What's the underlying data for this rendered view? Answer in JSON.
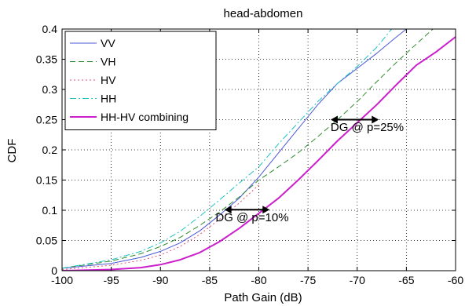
{
  "chart_data": {
    "type": "line",
    "title": "head-abdomen",
    "xlabel": "Path Gain (dB)",
    "ylabel": "CDF",
    "xlim": [
      -100,
      -60
    ],
    "ylim": [
      0,
      0.4
    ],
    "xticks": [
      -100,
      -95,
      -90,
      -85,
      -80,
      -75,
      -70,
      -65,
      -60
    ],
    "yticks": [
      0,
      0.05,
      0.1,
      0.15,
      0.2,
      0.25,
      0.3,
      0.35,
      0.4
    ],
    "xtick_labels": [
      "-100",
      "-95",
      "-90",
      "-85",
      "-80",
      "-75",
      "-70",
      "-65",
      "-60"
    ],
    "ytick_labels": [
      "0",
      "0.05",
      "0.1",
      "0.15",
      "0.2",
      "0.25",
      "0.3",
      "0.35",
      "0.4"
    ],
    "grid": true,
    "legend_position": "top-left",
    "series": [
      {
        "name": "VV",
        "color": "#4b57d6",
        "dash": "solid",
        "width": 1,
        "x": [
          -100,
          -95,
          -92,
          -90,
          -88,
          -86,
          -84,
          -82,
          -80,
          -78,
          -76,
          -74,
          -72,
          -70,
          -68,
          -66,
          -65
        ],
        "y": [
          0.004,
          0.012,
          0.022,
          0.032,
          0.046,
          0.066,
          0.092,
          0.12,
          0.155,
          0.195,
          0.235,
          0.275,
          0.31,
          0.335,
          0.36,
          0.387,
          0.4
        ]
      },
      {
        "name": "VH",
        "color": "#2e8b2e",
        "dash": "7,4",
        "width": 1,
        "x": [
          -100,
          -95,
          -92,
          -90,
          -88,
          -86,
          -84,
          -82,
          -80,
          -78,
          -76,
          -74,
          -72,
          -70,
          -68,
          -66,
          -64,
          -62.3
        ],
        "y": [
          0.004,
          0.016,
          0.028,
          0.04,
          0.055,
          0.075,
          0.097,
          0.122,
          0.15,
          0.172,
          0.195,
          0.222,
          0.25,
          0.28,
          0.313,
          0.345,
          0.375,
          0.4
        ]
      },
      {
        "name": "HV",
        "color": "#e64c7a",
        "dash": "2,3",
        "width": 1,
        "x": [
          -100,
          -95,
          -92,
          -90,
          -88,
          -86,
          -84,
          -82,
          -80
        ],
        "y": [
          0.002,
          0.009,
          0.017,
          0.026,
          0.04,
          0.06,
          0.085,
          0.112,
          0.142
        ]
      },
      {
        "name": "HH",
        "color": "#1fc2c2",
        "dash": "8,3,2,3",
        "width": 1,
        "x": [
          -100,
          -95,
          -92,
          -90,
          -88,
          -86,
          -84,
          -82,
          -80,
          -78,
          -76,
          -74,
          -72,
          -70,
          -68,
          -66.5
        ],
        "y": [
          0.004,
          0.018,
          0.032,
          0.046,
          0.065,
          0.09,
          0.117,
          0.145,
          0.172,
          0.21,
          0.245,
          0.28,
          0.31,
          0.338,
          0.37,
          0.4
        ]
      },
      {
        "name": "HH-HV combining",
        "color": "#cc1fcc",
        "dash": "solid",
        "width": 2,
        "x": [
          -100,
          -95,
          -92,
          -90,
          -88,
          -86,
          -84,
          -82,
          -80,
          -78,
          -76,
          -74,
          -72,
          -70,
          -68,
          -66,
          -64,
          -62,
          -60
        ],
        "y": [
          0.0,
          0.002,
          0.005,
          0.01,
          0.018,
          0.03,
          0.048,
          0.07,
          0.095,
          0.12,
          0.15,
          0.182,
          0.215,
          0.245,
          0.275,
          0.308,
          0.34,
          0.362,
          0.387
        ]
      }
    ],
    "annotations": [
      {
        "text": "DG @ p=10%",
        "text_x": -84.4,
        "text_y": 0.082,
        "arrow_x": [
          -83.5,
          -78.9
        ],
        "arrow_y": 0.101
      },
      {
        "text": "DG @ p=25%",
        "text_x": -72.7,
        "text_y": 0.231,
        "arrow_x": [
          -72.7,
          -67.8
        ],
        "arrow_y": 0.25
      }
    ]
  }
}
